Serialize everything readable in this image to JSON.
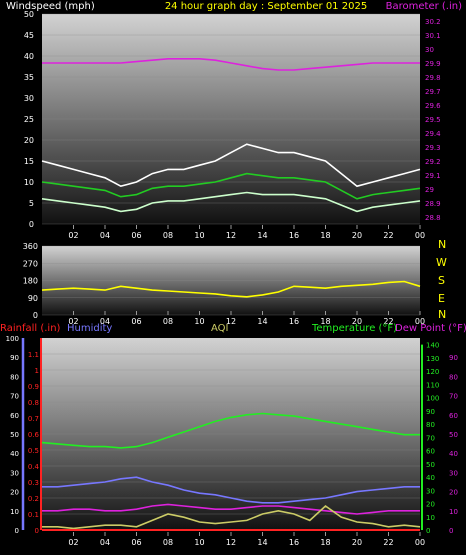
{
  "header": {
    "left": "Windspeed (mph)",
    "center": "24 hour graph day : September 01 2025",
    "right": "Barometer (.in)"
  },
  "compass": [
    "N",
    "W",
    "S",
    "E",
    "N"
  ],
  "legend": {
    "rainfall": "Rainfall (.in)",
    "humidity": "Humidity",
    "aqi": "AQI",
    "temperature": "Temperature (°F)",
    "dewpoint": "Dew Point (°F)"
  },
  "colors": {
    "wind_gust": "#ffffff",
    "wind_avg": "#22cc22",
    "wind_low": "#ccffcc",
    "barometer": "#dd22dd",
    "direction": "#ffff00",
    "rain": "#ff2222",
    "humidity": "#7777ff",
    "aqi": "#cccc66",
    "temperature": "#22ee22",
    "dewpoint": "#dd22dd"
  },
  "chart_data": [
    {
      "type": "line",
      "x_ticks": [
        "02",
        "04",
        "06",
        "08",
        "10",
        "12",
        "14",
        "16",
        "18",
        "20",
        "22",
        "00"
      ],
      "y_left_ticks": [
        "0",
        "5",
        "10",
        "15",
        "20",
        "25",
        "30",
        "35",
        "40",
        "45",
        "50"
      ],
      "y_left_range": [
        0,
        50
      ],
      "y_right_ticks": [
        "28.8",
        "28.9",
        "29",
        "29.1",
        "29.2",
        "29.3",
        "29.4",
        "29.5",
        "29.6",
        "29.7",
        "29.8",
        "29.9",
        "30",
        "30.1",
        "30.2"
      ],
      "y_right_range": [
        28.75,
        30.25
      ],
      "hours": [
        0,
        1,
        2,
        3,
        4,
        5,
        6,
        7,
        8,
        9,
        10,
        11,
        12,
        13,
        14,
        15,
        16,
        17,
        18,
        19,
        20,
        21,
        22,
        23,
        24
      ],
      "series": [
        {
          "key": "gust",
          "axis": "left",
          "values": [
            15,
            14,
            13,
            12,
            11,
            9,
            10,
            12,
            13,
            13,
            14,
            15,
            17,
            19,
            18,
            17,
            17,
            16,
            15,
            12,
            9,
            10,
            11,
            12,
            13
          ]
        },
        {
          "key": "avg",
          "axis": "left",
          "values": [
            10,
            9.5,
            9,
            8.5,
            8,
            6.5,
            7,
            8.5,
            9,
            9,
            9.5,
            10,
            11,
            12,
            11.5,
            11,
            11,
            10.5,
            10,
            8,
            6,
            7,
            7.5,
            8,
            8.5
          ]
        },
        {
          "key": "low",
          "axis": "left",
          "values": [
            6,
            5.5,
            5,
            4.5,
            4,
            3,
            3.5,
            5,
            5.5,
            5.5,
            6,
            6.5,
            7,
            7.5,
            7,
            7,
            7,
            6.5,
            6,
            4.5,
            3,
            4,
            4.5,
            5,
            5.5
          ]
        },
        {
          "key": "baro",
          "axis": "right",
          "values": [
            29.9,
            29.9,
            29.9,
            29.9,
            29.9,
            29.9,
            29.91,
            29.92,
            29.93,
            29.93,
            29.93,
            29.92,
            29.9,
            29.88,
            29.86,
            29.85,
            29.85,
            29.86,
            29.87,
            29.88,
            29.89,
            29.9,
            29.9,
            29.9,
            29.9
          ]
        }
      ]
    },
    {
      "type": "line",
      "x_ticks": [
        "02",
        "04",
        "06",
        "08",
        "10",
        "12",
        "14",
        "16",
        "18",
        "20",
        "22",
        "00"
      ],
      "y_ticks": [
        "0",
        "90",
        "180",
        "270",
        "360"
      ],
      "y_range": [
        0,
        360
      ],
      "series": [
        {
          "key": "direction",
          "values": [
            130,
            135,
            140,
            135,
            130,
            150,
            140,
            130,
            125,
            120,
            115,
            110,
            100,
            95,
            105,
            120,
            150,
            145,
            140,
            150,
            155,
            160,
            170,
            175,
            150
          ]
        }
      ]
    },
    {
      "type": "line",
      "x_ticks": [
        "02",
        "04",
        "06",
        "08",
        "10",
        "12",
        "14",
        "16",
        "18",
        "20",
        "22",
        "00"
      ],
      "rain_ticks": [
        "0",
        "0.1",
        "0.2",
        "0.3",
        "0.4",
        "0.5",
        "0.6",
        "0.7",
        "0.8",
        "0.9",
        "1",
        "1.1"
      ],
      "rain_range": [
        0,
        1.2
      ],
      "pct_ticks": [
        "0",
        "10",
        "20",
        "30",
        "40",
        "50",
        "60",
        "70",
        "80",
        "90",
        "100"
      ],
      "pct_range": [
        0,
        100
      ],
      "temp_ticks": [
        "0",
        "10",
        "20",
        "30",
        "40",
        "50",
        "60",
        "70",
        "80",
        "90",
        "100",
        "110",
        "120",
        "130",
        "140"
      ],
      "temp_range": [
        0,
        145
      ],
      "dew_ticks": [
        "0",
        "10",
        "20",
        "30",
        "40",
        "50",
        "60",
        "70",
        "80",
        "90"
      ],
      "series": [
        {
          "key": "temperature",
          "axis": "temp",
          "values": [
            66,
            65,
            64,
            63,
            63,
            62,
            63,
            66,
            70,
            74,
            78,
            82,
            85,
            87,
            88,
            87,
            86,
            84,
            82,
            80,
            78,
            76,
            74,
            72,
            72
          ]
        },
        {
          "key": "humidity",
          "axis": "rain",
          "values": [
            0.27,
            0.27,
            0.28,
            0.29,
            0.3,
            0.32,
            0.33,
            0.3,
            0.28,
            0.25,
            0.23,
            0.22,
            0.2,
            0.18,
            0.17,
            0.17,
            0.18,
            0.19,
            0.2,
            0.22,
            0.24,
            0.25,
            0.26,
            0.27,
            0.27
          ]
        },
        {
          "key": "dewpoint",
          "axis": "rain",
          "values": [
            0.12,
            0.12,
            0.13,
            0.13,
            0.12,
            0.12,
            0.13,
            0.15,
            0.16,
            0.15,
            0.14,
            0.13,
            0.13,
            0.14,
            0.15,
            0.15,
            0.14,
            0.13,
            0.12,
            0.11,
            0.1,
            0.11,
            0.12,
            0.12,
            0.12
          ]
        },
        {
          "key": "aqi",
          "axis": "rain",
          "values": [
            0.02,
            0.02,
            0.01,
            0.02,
            0.03,
            0.03,
            0.02,
            0.06,
            0.1,
            0.08,
            0.05,
            0.04,
            0.05,
            0.06,
            0.1,
            0.12,
            0.1,
            0.06,
            0.15,
            0.08,
            0.05,
            0.04,
            0.02,
            0.03,
            0.02
          ]
        },
        {
          "key": "rain",
          "axis": "rain",
          "values": [
            0,
            0,
            0,
            0,
            0,
            0,
            0,
            0,
            0,
            0,
            0,
            0,
            0,
            0,
            0,
            0,
            0,
            0,
            0,
            0,
            0,
            0,
            0,
            0,
            0
          ]
        }
      ]
    }
  ]
}
